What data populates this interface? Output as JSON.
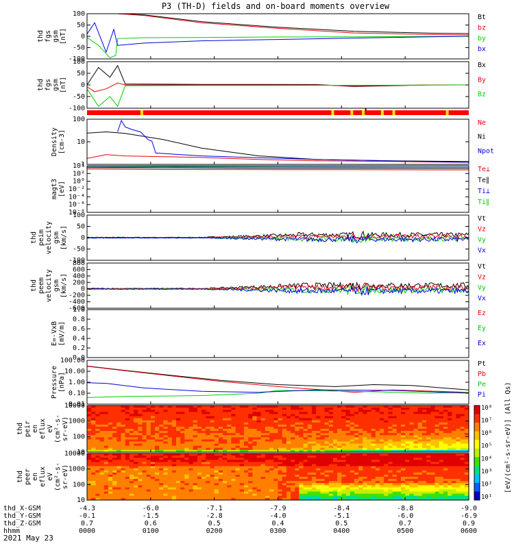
{
  "title": "P3 (TH-D) fields and on-board moments overview",
  "footer_date": "2021 May 23",
  "colorbar_label": "[eV/(cm²-s-sr-eV)] (All Qs)",
  "colorbar_ticks": [
    "10⁸",
    "10⁷",
    "10⁶",
    "10⁵",
    "10⁴",
    "10³",
    "10²",
    "10¹"
  ],
  "colors": {
    "black": "#000000",
    "red": "#e8000b",
    "green": "#00cc00",
    "blue": "#0000e0",
    "yellow": "#e8e800",
    "background": "#ffffff"
  },
  "chart_data": [
    {
      "id": "fgs",
      "type": "line",
      "ylabel": [
        "thd",
        "fgs",
        "gsm",
        "[nT]"
      ],
      "yticks": [
        "100",
        "50",
        "0",
        "-50",
        "-100"
      ],
      "ylim": [
        -100,
        100
      ],
      "series": [
        {
          "name": "Bt",
          "color": "black",
          "x": [
            0,
            0.03,
            0.06,
            0.08,
            0.15,
            0.3,
            0.5,
            0.7,
            0.9,
            1
          ],
          "values": [
            100,
            100,
            100,
            100,
            95,
            65,
            40,
            22,
            14,
            12
          ]
        },
        {
          "name": "bz",
          "color": "red",
          "x": [
            0,
            0.03,
            0.06,
            0.08,
            0.15,
            0.3,
            0.5,
            0.7,
            0.9,
            1
          ],
          "values": [
            100,
            100,
            100,
            100,
            92,
            60,
            35,
            15,
            8,
            6
          ]
        },
        {
          "name": "by",
          "color": "green",
          "x": [
            0,
            0.03,
            0.06,
            0.075,
            0.08,
            0.15,
            0.3,
            0.5,
            0.7,
            0.9,
            1
          ],
          "values": [
            -5,
            -40,
            -95,
            -85,
            -10,
            -6,
            -5,
            -3,
            -2,
            -1,
            0
          ]
        },
        {
          "name": "bx",
          "color": "blue",
          "x": [
            0,
            0.02,
            0.05,
            0.07,
            0.08,
            0.15,
            0.3,
            0.5,
            0.7,
            0.9,
            1
          ],
          "values": [
            10,
            60,
            -70,
            30,
            -40,
            -30,
            -20,
            -14,
            -8,
            -2,
            0
          ]
        }
      ]
    },
    {
      "id": "fgs-dsl",
      "type": "line",
      "ylabel": [
        "thd",
        "fgs",
        "gsm",
        "[nT]"
      ],
      "yticks": [
        "100",
        "50",
        "0",
        "-50",
        "-100"
      ],
      "ylim": [
        -120,
        120
      ],
      "series": [
        {
          "name": "Bx",
          "color": "black",
          "x": [
            0,
            0.03,
            0.06,
            0.08,
            0.1,
            0.3,
            0.6,
            0.7,
            0.9,
            1
          ],
          "values": [
            0,
            90,
            40,
            100,
            5,
            3,
            2,
            -8,
            0,
            0
          ]
        },
        {
          "name": "By",
          "color": "red",
          "x": [
            0,
            0.02,
            0.05,
            0.08,
            0.1,
            0.3,
            0.6,
            0.7,
            0.9,
            1
          ],
          "values": [
            -10,
            -35,
            -20,
            10,
            0,
            0,
            0,
            -5,
            0,
            0
          ]
        },
        {
          "name": "Bz",
          "color": "green",
          "x": [
            0,
            0.03,
            0.06,
            0.08,
            0.1,
            0.3,
            0.6,
            0.9,
            1
          ],
          "values": [
            -20,
            -110,
            -60,
            -110,
            -4,
            -3,
            -2,
            -1,
            0
          ]
        }
      ]
    },
    {
      "id": "density",
      "type": "line",
      "scale": "log",
      "ylabel": [
        "Density",
        "[cm-3]"
      ],
      "yticks": [
        "100",
        "10",
        "1"
      ],
      "ylim": [
        0.3,
        180
      ],
      "series": [
        {
          "name": "Ne",
          "color": "red",
          "x": [
            0,
            0.05,
            0.1,
            0.2,
            0.3,
            0.45,
            0.6,
            0.8,
            1
          ],
          "values": [
            0.7,
            1.2,
            1.0,
            0.9,
            0.8,
            0.6,
            0.5,
            0.45,
            0.4
          ]
        },
        {
          "name": "Ni",
          "color": "black",
          "x": [
            0,
            0.05,
            0.1,
            0.2,
            0.3,
            0.45,
            0.6,
            0.8,
            1
          ],
          "values": [
            25,
            30,
            24,
            10,
            3,
            1.0,
            0.6,
            0.5,
            0.45
          ]
        },
        {
          "name": "Npot",
          "color": "blue",
          "x": [
            0.08,
            0.09,
            0.1,
            0.12,
            0.14,
            0.16,
            0.17,
            0.18,
            0.3,
            0.6,
            1
          ],
          "values": [
            30,
            150,
            60,
            40,
            30,
            10,
            8,
            1.5,
            1.0,
            0.6,
            0.4
          ]
        }
      ]
    },
    {
      "id": "temperature",
      "type": "line",
      "scale": "log",
      "ylabel": [
        "magt3",
        "[eV]"
      ],
      "yticks": [
        "10⁴",
        "10²",
        "10⁰",
        "10⁻²",
        "10⁻⁴",
        "10⁻⁶",
        "10⁻⁸"
      ],
      "ylim": [
        1e-09,
        10000.0
      ],
      "series": [
        {
          "name": "Te⊥",
          "color": "red",
          "x": [
            0,
            0.2,
            0.5,
            1
          ],
          "values": [
            1200,
            900,
            800,
            700
          ]
        },
        {
          "name": "Te∥",
          "color": "black",
          "x": [
            0,
            0.2,
            0.5,
            1
          ],
          "values": [
            3000,
            2500,
            2000,
            1800
          ]
        },
        {
          "name": "Ti⊥",
          "color": "blue",
          "x": [
            0,
            0.2,
            0.5,
            1
          ],
          "values": [
            5000,
            6000,
            5000,
            4000
          ]
        },
        {
          "name": "Ti∥",
          "color": "green",
          "x": [
            0,
            0.2,
            0.5,
            1
          ],
          "values": [
            4000,
            4500,
            4000,
            3500
          ]
        }
      ]
    },
    {
      "id": "peim-velocity",
      "type": "line",
      "ylabel": [
        "thd",
        "peim",
        "velocity",
        "gsm",
        "[km/s]"
      ],
      "yticks": [
        "100",
        "50",
        "0",
        "-50",
        "-100"
      ],
      "ylim": [
        -100,
        100
      ],
      "series": [
        {
          "name": "Vt",
          "color": "black"
        },
        {
          "name": "Vz",
          "color": "red"
        },
        {
          "name": "Vy",
          "color": "green"
        },
        {
          "name": "Vx",
          "color": "blue"
        }
      ]
    },
    {
      "id": "peem-velocity",
      "type": "line",
      "ylabel": [
        "thd",
        "peem",
        "velocity",
        "gsm",
        "[km/s]"
      ],
      "yticks": [
        "800",
        "600",
        "400",
        "200",
        "0",
        "-200",
        "-400",
        "-600"
      ],
      "ylim": [
        -600,
        800
      ],
      "series": [
        {
          "name": "Vt",
          "color": "black"
        },
        {
          "name": "Vz",
          "color": "red"
        },
        {
          "name": "Vy",
          "color": "green"
        },
        {
          "name": "Vx",
          "color": "blue"
        }
      ]
    },
    {
      "id": "efield",
      "type": "line",
      "ylabel": [
        "E=-VxB",
        "[mV/m]"
      ],
      "yticks": [
        "1.0",
        "0.8",
        "0.6",
        "0.4",
        "0.2",
        "0.0"
      ],
      "ylim": [
        0,
        1
      ],
      "series": [
        {
          "name": "Ez",
          "color": "red"
        },
        {
          "name": "Ey",
          "color": "green"
        },
        {
          "name": "Ex",
          "color": "blue"
        }
      ]
    },
    {
      "id": "pressure",
      "type": "line",
      "scale": "log",
      "ylabel": [
        "Pressure",
        "[nPa]"
      ],
      "yticks": [
        "100.00",
        "10.00",
        "1.00",
        "0.10",
        "0.01"
      ],
      "ylim": [
        0.01,
        100
      ],
      "series": [
        {
          "name": "Pt",
          "color": "black",
          "x": [
            0,
            0.1,
            0.2,
            0.35,
            0.5,
            0.65,
            0.75,
            0.85,
            1
          ],
          "values": [
            30,
            12,
            5,
            1.5,
            0.6,
            0.4,
            0.6,
            0.5,
            0.2
          ]
        },
        {
          "name": "Pb",
          "color": "red",
          "x": [
            0,
            0.1,
            0.2,
            0.35,
            0.5,
            0.62,
            0.7,
            0.8,
            1
          ],
          "values": [
            28,
            11,
            4.5,
            1.2,
            0.4,
            0.2,
            0.12,
            0.2,
            0.12
          ]
        },
        {
          "name": "Pe",
          "color": "green",
          "x": [
            0,
            0.1,
            0.3,
            0.45,
            0.5,
            0.7,
            0.9,
            1
          ],
          "values": [
            0.04,
            0.05,
            0.06,
            0.1,
            0.18,
            0.15,
            0.1,
            0.12
          ]
        },
        {
          "name": "Pi",
          "color": "blue",
          "x": [
            0,
            0.05,
            0.15,
            0.3,
            0.45,
            0.6,
            0.8,
            1
          ],
          "values": [
            0.9,
            0.8,
            0.3,
            0.15,
            0.12,
            0.2,
            0.18,
            0.1
          ]
        }
      ]
    },
    {
      "id": "peir-spectrogram",
      "type": "heatmap",
      "ylabel": [
        "thd",
        "peir",
        "en",
        "eflux",
        "eV",
        "(cm²-s-",
        "sr-eV)"
      ],
      "yticks": [
        "10000",
        "1000",
        "100",
        "10"
      ],
      "ylim": [
        5,
        25000
      ]
    },
    {
      "id": "peer-spectrogram",
      "type": "heatmap",
      "ylabel": [
        "thd",
        "peer",
        "en",
        "eflux",
        "eV",
        "(cm²-s-",
        "sr-eV)"
      ],
      "yticks": [
        "10000",
        "1000",
        "100",
        "10"
      ],
      "ylim": [
        5,
        25000
      ]
    }
  ],
  "xaxis": {
    "row_labels": [
      "thd_X-GSM",
      "thd_Y-GSM",
      "thd_Z-GSM",
      "hhmm"
    ],
    "columns": [
      [
        "-4.3",
        "-0.1",
        "0.7",
        "0000"
      ],
      [
        "-6.0",
        "-1.5",
        "0.6",
        "0100"
      ],
      [
        "-7.1",
        "-2.8",
        "0.5",
        "0200"
      ],
      [
        "-7.9",
        "-4.0",
        "0.4",
        "0300"
      ],
      [
        "-8.4",
        "-5.1",
        "0.5",
        "0400"
      ],
      [
        "-8.8",
        "-6.0",
        "0.7",
        "0500"
      ],
      [
        "-9.0",
        "-6.9",
        "0.9",
        "0600"
      ]
    ]
  }
}
